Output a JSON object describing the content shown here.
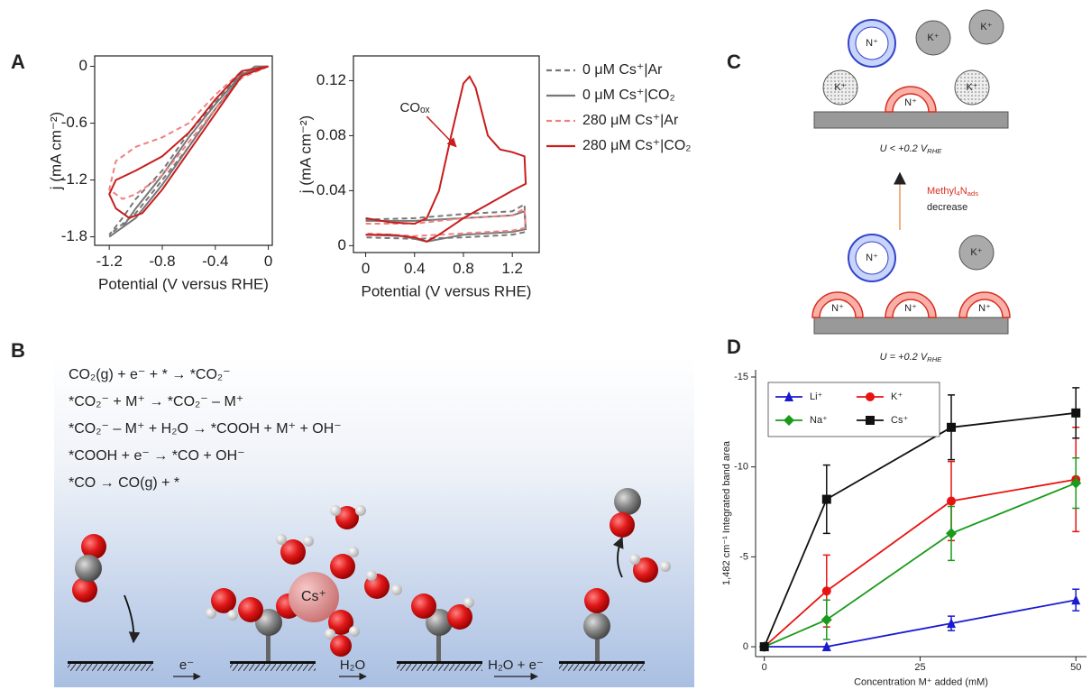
{
  "panel_labels": [
    "A",
    "B",
    "C",
    "D"
  ],
  "chart_data": [
    {
      "type": "line",
      "xlabel": "Potential (V versus RHE)",
      "ylabel": "j (mA cm⁻²)",
      "frame": "box",
      "xlim": [
        -1.31,
        0.03
      ],
      "xticks": [
        -1.2,
        -0.8,
        -0.4,
        0
      ],
      "ylim": [
        -1.89,
        0.11
      ],
      "yticks": [
        0,
        -0.6,
        -1.2,
        -1.8
      ],
      "series": [
        {
          "color": "#777777",
          "dash": true,
          "x": [
            0,
            -0.2,
            -0.4,
            -0.6,
            -0.8,
            -1.0,
            -1.2,
            -1.1,
            -1.0,
            -0.8,
            -0.6,
            -0.4,
            -0.2,
            0
          ],
          "values": [
            0,
            -0.1,
            -0.45,
            -0.85,
            -1.2,
            -1.55,
            -1.78,
            -1.6,
            -1.4,
            -1.1,
            -0.7,
            -0.38,
            -0.07,
            0
          ]
        },
        {
          "color": "#777777",
          "dash": false,
          "x": [
            0,
            -0.1,
            -0.2,
            -0.4,
            -0.6,
            -0.8,
            -1.0,
            -1.15,
            -1.2,
            -1.1,
            -1.0,
            -0.8,
            -0.6,
            -0.4,
            -0.2,
            0
          ],
          "values": [
            0,
            0,
            -0.1,
            -0.45,
            -0.85,
            -1.25,
            -1.6,
            -1.75,
            -1.8,
            -1.7,
            -1.5,
            -1.15,
            -0.75,
            -0.4,
            -0.08,
            0
          ]
        },
        {
          "color": "#f08080",
          "dash": true,
          "x": [
            0,
            -0.2,
            -0.4,
            -0.6,
            -0.8,
            -1.0,
            -1.1,
            -1.2,
            -1.15,
            -1.0,
            -0.8,
            -0.6,
            -0.4,
            -0.2,
            0
          ],
          "values": [
            0,
            -0.12,
            -0.45,
            -0.8,
            -1.15,
            -1.35,
            -1.4,
            -1.3,
            -1.0,
            -0.85,
            -0.75,
            -0.6,
            -0.3,
            -0.05,
            0
          ]
        },
        {
          "color": "#c81e1e",
          "dash": false,
          "x": [
            0,
            -0.2,
            -0.4,
            -0.6,
            -0.8,
            -0.95,
            -1.05,
            -1.15,
            -1.2,
            -1.15,
            -1.0,
            -0.8,
            -0.6,
            -0.4,
            -0.2,
            0
          ],
          "values": [
            0,
            -0.1,
            -0.5,
            -0.9,
            -1.3,
            -1.55,
            -1.6,
            -1.5,
            -1.35,
            -1.2,
            -1.1,
            -0.95,
            -0.7,
            -0.35,
            -0.05,
            0
          ]
        }
      ]
    },
    {
      "type": "line",
      "xlabel": "Potential (V versus RHE)",
      "ylabel": "j (mA cm⁻²)",
      "frame": "box",
      "legend": "outside-right",
      "xlim": [
        -0.1,
        1.42
      ],
      "xticks": [
        0,
        0.4,
        0.8,
        1.2
      ],
      "ylim": [
        -0.005,
        0.138
      ],
      "yticks": [
        0,
        0.04,
        0.08,
        0.12
      ],
      "annotation": "COₒₓ",
      "series": [
        {
          "name": "0 μM Cs⁺|Ar",
          "color": "#777777",
          "dash": true,
          "x": [
            0,
            0.4,
            0.8,
            1.2,
            1.3,
            1.31,
            1.2,
            0.8,
            0.4,
            0
          ],
          "values": [
            0.019,
            0.02,
            0.023,
            0.025,
            0.03,
            0.01,
            0.008,
            0.006,
            0.005,
            0.006
          ]
        },
        {
          "name": "0 μM Cs⁺|CO₂",
          "color": "#777777",
          "dash": false,
          "x": [
            0,
            0.4,
            0.8,
            1.2,
            1.3,
            1.31,
            1.2,
            0.8,
            0.5,
            0.3,
            0
          ],
          "values": [
            0.018,
            0.018,
            0.02,
            0.022,
            0.025,
            0.012,
            0.01,
            0.008,
            0.003,
            0.007,
            0.008
          ]
        },
        {
          "name": "280 μM Cs⁺|Ar",
          "color": "#f08080",
          "dash": true,
          "x": [
            0,
            0.4,
            0.8,
            1.2,
            1.3,
            1.31,
            1.2,
            0.8,
            0.4,
            0
          ],
          "values": [
            0.016,
            0.016,
            0.02,
            0.022,
            0.027,
            0.013,
            0.011,
            0.009,
            0.007,
            0.009
          ]
        },
        {
          "name": "280 μM Cs⁺|CO₂",
          "color": "#c81e1e",
          "dash": false,
          "x": [
            0,
            0.2,
            0.4,
            0.5,
            0.6,
            0.7,
            0.8,
            0.85,
            0.9,
            1.0,
            1.1,
            1.2,
            1.3,
            1.31,
            1.2,
            1.0,
            0.8,
            0.6,
            0.5,
            0.4,
            0.2,
            0
          ],
          "values": [
            0.02,
            0.017,
            0.016,
            0.02,
            0.04,
            0.08,
            0.118,
            0.123,
            0.115,
            0.08,
            0.07,
            0.068,
            0.065,
            0.045,
            0.04,
            0.03,
            0.02,
            0.008,
            0.003,
            0.006,
            0.008,
            0.008
          ]
        }
      ]
    },
    {
      "type": "errorline",
      "xlabel": "Concentration M⁺ added (mM)",
      "ylabel": "1,482 cm⁻¹ Integrated band area",
      "frame": "axes",
      "legend": "upper-left",
      "x": [
        0,
        10,
        30,
        50
      ],
      "xlim": [
        -1.4,
        51.7
      ],
      "xticks": [
        0,
        25,
        50
      ],
      "ylim": [
        0.55,
        -15.4
      ],
      "yticks": [
        -15,
        -10,
        -5,
        0
      ],
      "series": [
        {
          "name": "Li⁺",
          "color": "#1a1acf",
          "marker": "triangle",
          "values": [
            0,
            0,
            -1.3,
            -2.6
          ],
          "errors": [
            0,
            0,
            0.4,
            0.6
          ]
        },
        {
          "name": "K⁺",
          "color": "#e8130f",
          "marker": "circle",
          "values": [
            0,
            -3.1,
            -8.1,
            -9.3
          ],
          "errors": [
            0,
            2.0,
            2.2,
            2.9
          ]
        },
        {
          "name": "Na⁺",
          "color": "#1a9a1a",
          "marker": "diamond",
          "values": [
            0,
            -1.5,
            -6.3,
            -9.1
          ],
          "errors": [
            0,
            1.1,
            1.5,
            1.4
          ]
        },
        {
          "name": "Cs⁺",
          "color": "#111111",
          "marker": "square",
          "values": [
            0,
            -8.2,
            -12.2,
            -13.0
          ],
          "errors": [
            0,
            1.9,
            1.8,
            1.4
          ]
        }
      ]
    }
  ],
  "scheme_b": {
    "equations": [
      "CO₂(g) + e⁻ + * → *CO₂⁻",
      "*CO₂⁻ + M⁺ → *CO₂⁻ – M⁺",
      "*CO₂⁻ – M⁺ + H₂O → *COOH + M⁺ + OH⁻",
      "*COOH + e⁻ → *CO + OH⁻",
      "*CO → CO(g) + *"
    ],
    "step1": "e⁻",
    "step2": "H₂O",
    "step3": "H₂O + e⁻",
    "cation": "Cs⁺"
  },
  "scheme_c": {
    "ion": "K⁺",
    "amine": "N⁺",
    "top_potential": [
      {
        "t": "U < +0.2 V"
      },
      {
        "sub": "RHE"
      }
    ],
    "bottom_potential": [
      {
        "t": "U = +0.2 V"
      },
      {
        "sub": "RHE"
      }
    ],
    "arrow_label": [
      {
        "t": "Methyl"
      },
      {
        "sub": "4"
      },
      {
        "t": "N"
      },
      {
        "sub": "ads"
      }
    ],
    "arrow_label2": "decrease"
  }
}
